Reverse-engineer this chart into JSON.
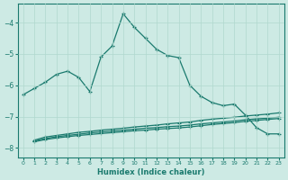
{
  "xlabel": "Humidex (Indice chaleur)",
  "xlim": [
    -0.5,
    23.5
  ],
  "ylim": [
    -8.3,
    -3.4
  ],
  "yticks": [
    -8,
    -7,
    -6,
    -5,
    -4
  ],
  "xticks": [
    0,
    1,
    2,
    3,
    4,
    5,
    6,
    7,
    8,
    9,
    10,
    11,
    12,
    13,
    14,
    15,
    16,
    17,
    18,
    19,
    20,
    21,
    22,
    23
  ],
  "bg_color": "#cdeae4",
  "line_color": "#1a7a6e",
  "grid_color": "#b0d8ce",
  "series1_x": [
    0,
    1,
    2,
    3,
    4,
    5,
    6,
    7,
    8,
    9,
    10,
    11,
    12,
    13,
    14,
    15,
    16,
    17,
    18,
    19,
    20,
    21,
    22,
    23
  ],
  "series1_y": [
    -6.3,
    -6.1,
    -5.9,
    -5.65,
    -5.55,
    -5.75,
    -6.2,
    -5.1,
    -4.75,
    -3.72,
    -4.15,
    -4.5,
    -4.85,
    -5.05,
    -5.12,
    -6.0,
    -6.35,
    -6.55,
    -6.65,
    -6.6,
    -6.95,
    -7.35,
    -7.55,
    -7.55
  ],
  "series2_x": [
    1,
    2,
    3,
    4,
    5,
    6,
    7,
    8,
    9,
    10,
    11,
    12,
    13,
    14,
    15,
    16,
    17,
    18,
    19,
    20,
    21,
    22,
    23
  ],
  "series2_y": [
    -7.75,
    -7.65,
    -7.6,
    -7.55,
    -7.5,
    -7.47,
    -7.43,
    -7.4,
    -7.37,
    -7.33,
    -7.3,
    -7.27,
    -7.23,
    -7.2,
    -7.17,
    -7.12,
    -7.08,
    -7.05,
    -7.02,
    -6.98,
    -6.95,
    -6.92,
    -6.88
  ],
  "series3_x": [
    1,
    2,
    3,
    4,
    5,
    6,
    7,
    8,
    9,
    10,
    11,
    12,
    13,
    14,
    15,
    16,
    17,
    18,
    19,
    20,
    21,
    22,
    23
  ],
  "series3_y": [
    -7.78,
    -7.7,
    -7.64,
    -7.6,
    -7.56,
    -7.52,
    -7.49,
    -7.46,
    -7.43,
    -7.4,
    -7.37,
    -7.35,
    -7.32,
    -7.3,
    -7.27,
    -7.23,
    -7.2,
    -7.17,
    -7.14,
    -7.1,
    -7.07,
    -7.05,
    -7.02
  ],
  "series4_x": [
    1,
    2,
    3,
    4,
    5,
    6,
    7,
    8,
    9,
    10,
    11,
    12,
    13,
    14,
    15,
    16,
    17,
    18,
    19,
    20,
    21,
    22,
    23
  ],
  "series4_y": [
    -7.8,
    -7.73,
    -7.68,
    -7.64,
    -7.6,
    -7.57,
    -7.54,
    -7.51,
    -7.48,
    -7.45,
    -7.43,
    -7.4,
    -7.38,
    -7.36,
    -7.33,
    -7.29,
    -7.25,
    -7.22,
    -7.19,
    -7.15,
    -7.12,
    -7.09,
    -7.06
  ]
}
